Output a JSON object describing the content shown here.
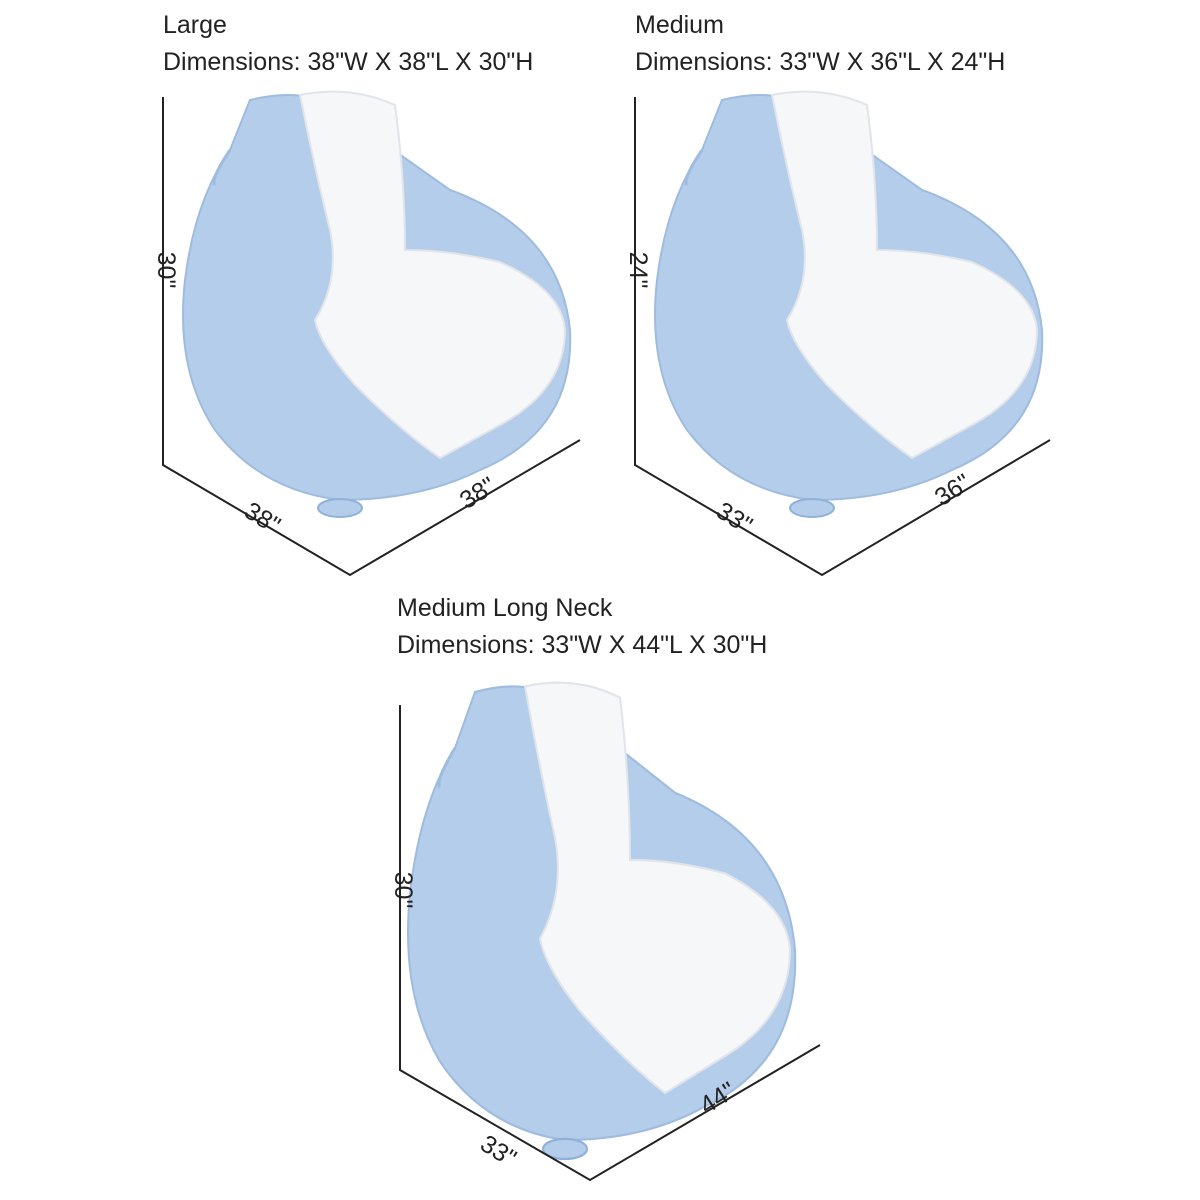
{
  "products": [
    {
      "title": "Large",
      "dimensions": "Dimensions: 38\"W X 38\"L X 30\"H",
      "height_label": "30\"",
      "width_label": "38\"",
      "length_label": "38\""
    },
    {
      "title": "Medium",
      "dimensions": "Dimensions: 33\"W X 36\"L X 24\"H",
      "height_label": "24\"",
      "width_label": "33\"",
      "length_label": "36\""
    },
    {
      "title": "Medium Long Neck",
      "dimensions": "Dimensions: 33\"W X 44\"L X 30\"H",
      "height_label": "30\"",
      "width_label": "33\"",
      "length_label": "44\""
    }
  ]
}
